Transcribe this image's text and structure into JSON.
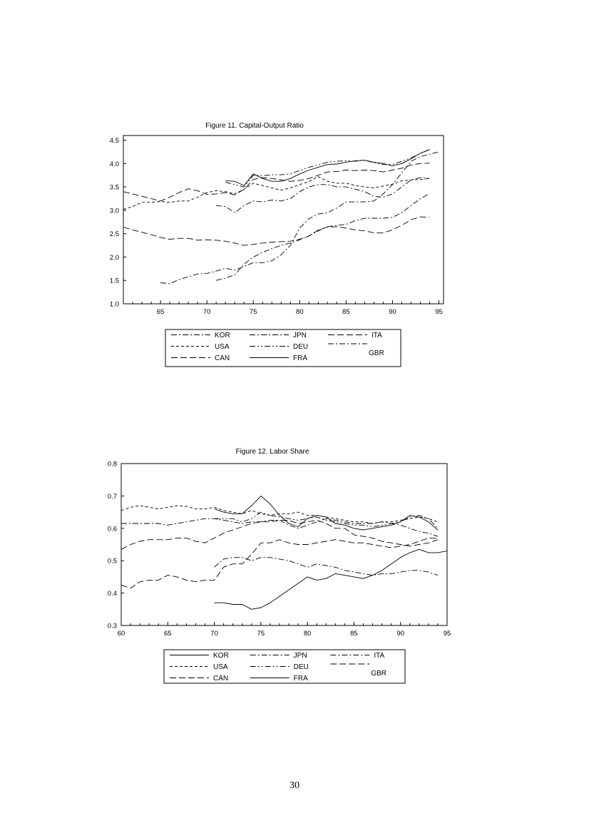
{
  "page_number": "30",
  "chart_data": [
    {
      "type": "line",
      "title": "Figure 11.  Capital-Output Ratio",
      "xlabel": "",
      "ylabel": "",
      "xlim": [
        61,
        95.5
      ],
      "ylim": [
        1.0,
        4.6
      ],
      "x_ticks": [
        "65",
        "70",
        "75",
        "80",
        "85",
        "90",
        "95"
      ],
      "y_ticks": [
        "1.0",
        "1.5",
        "2.0",
        "2.5",
        "3.0",
        "3.5",
        "4.0",
        "4.5"
      ],
      "grid": false,
      "legend_position": "below",
      "legend": [
        "KOR",
        "USA",
        "CAN",
        "JPN",
        "DEU",
        "FRA",
        "ITA",
        "GBR"
      ],
      "series": [
        {
          "name": "KOR",
          "style": "dashdot",
          "x": [
            65,
            66,
            67,
            68,
            69,
            70,
            71,
            72,
            73,
            74,
            75,
            76,
            77,
            78,
            79,
            80,
            81,
            82,
            83,
            84,
            85,
            86,
            87,
            88,
            89,
            90,
            91,
            92,
            93,
            94,
            95
          ],
          "y": [
            1.45,
            1.43,
            1.52,
            1.58,
            1.64,
            1.65,
            1.7,
            1.76,
            1.72,
            1.8,
            1.88,
            1.88,
            1.92,
            2.05,
            2.25,
            2.62,
            2.82,
            2.92,
            2.95,
            3.05,
            3.18,
            3.18,
            3.18,
            3.2,
            3.35,
            3.55,
            3.8,
            4.05,
            4.15,
            4.2,
            4.25
          ]
        },
        {
          "name": "USA",
          "style": "dashed",
          "x": [
            61,
            62,
            63,
            64,
            65,
            66,
            67,
            68,
            69,
            70,
            71,
            72,
            73,
            74,
            75,
            76,
            77,
            78,
            79,
            80,
            81,
            82,
            83,
            84,
            85,
            86,
            87,
            88,
            89,
            90,
            91,
            92,
            93,
            94
          ],
          "y": [
            3.02,
            3.08,
            3.17,
            3.17,
            3.19,
            3.17,
            3.2,
            3.2,
            3.28,
            3.38,
            3.42,
            3.4,
            3.35,
            3.45,
            3.58,
            3.53,
            3.48,
            3.43,
            3.48,
            3.55,
            3.62,
            3.72,
            3.62,
            3.58,
            3.58,
            3.53,
            3.5,
            3.48,
            3.52,
            3.56,
            3.63,
            3.65,
            3.66,
            3.68
          ]
        },
        {
          "name": "CAN",
          "style": "longdash",
          "x": [
            61,
            62,
            63,
            64,
            65,
            66,
            67,
            68,
            69,
            70,
            71,
            72,
            73,
            74,
            75,
            76,
            77,
            78,
            79,
            80,
            81,
            82,
            83,
            84,
            85,
            86,
            87,
            88,
            89,
            90,
            91,
            92,
            93,
            94
          ],
          "y": [
            3.4,
            3.35,
            3.3,
            3.25,
            3.2,
            3.28,
            3.38,
            3.46,
            3.42,
            3.34,
            3.35,
            3.38,
            3.33,
            3.45,
            3.66,
            3.7,
            3.68,
            3.65,
            3.62,
            3.64,
            3.68,
            3.75,
            3.82,
            3.83,
            3.86,
            3.85,
            3.86,
            3.85,
            3.82,
            3.86,
            3.9,
            3.97,
            4.0,
            4.01
          ]
        },
        {
          "name": "JPN",
          "style": "dashdot",
          "x": [
            71,
            72,
            73,
            74,
            75,
            76,
            77,
            78,
            79,
            80,
            81,
            82,
            83,
            84,
            85,
            86,
            87,
            88,
            89,
            90,
            91,
            92,
            93,
            94
          ],
          "y": [
            1.5,
            1.55,
            1.62,
            1.85,
            2.0,
            2.1,
            2.18,
            2.25,
            2.3,
            2.37,
            2.45,
            2.56,
            2.65,
            2.68,
            2.7,
            2.78,
            2.83,
            2.83,
            2.83,
            2.85,
            2.95,
            3.1,
            3.25,
            3.36
          ]
        },
        {
          "name": "DEU",
          "style": "dashdotdot",
          "x": [
            72,
            73,
            74,
            75,
            76,
            77,
            78,
            79,
            80,
            81,
            82,
            83,
            84,
            85,
            86,
            87,
            88,
            89,
            90,
            91,
            92,
            93,
            94
          ],
          "y": [
            3.6,
            3.55,
            3.5,
            3.75,
            3.74,
            3.76,
            3.76,
            3.78,
            3.85,
            3.92,
            3.97,
            4.03,
            4.05,
            4.06,
            4.05,
            4.07,
            4.02,
            3.98,
            3.98,
            4.05,
            4.12,
            4.22,
            4.3
          ]
        },
        {
          "name": "FRA",
          "style": "solid",
          "x": [
            72,
            73,
            74,
            75,
            76,
            77,
            78,
            79,
            80,
            81,
            82,
            83,
            84,
            85,
            86,
            87,
            88,
            89,
            90,
            91,
            92,
            93,
            94
          ],
          "y": [
            3.63,
            3.62,
            3.53,
            3.78,
            3.68,
            3.62,
            3.62,
            3.68,
            3.78,
            3.86,
            3.92,
            3.98,
            3.99,
            4.03,
            4.06,
            4.07,
            4.03,
            4.0,
            3.95,
            4.0,
            4.1,
            4.22,
            4.3
          ]
        },
        {
          "name": "ITA",
          "style": "longdash",
          "x": [
            61,
            62,
            63,
            64,
            65,
            66,
            67,
            68,
            69,
            70,
            71,
            72,
            73,
            74,
            75,
            76,
            77,
            78,
            79,
            80,
            81,
            82,
            83,
            84,
            85,
            86,
            87,
            88,
            89,
            90,
            91,
            92,
            93,
            94
          ],
          "y": [
            2.64,
            2.58,
            2.53,
            2.48,
            2.42,
            2.38,
            2.4,
            2.4,
            2.36,
            2.37,
            2.36,
            2.34,
            2.3,
            2.25,
            2.27,
            2.3,
            2.32,
            2.33,
            2.34,
            2.38,
            2.45,
            2.58,
            2.64,
            2.65,
            2.62,
            2.58,
            2.56,
            2.52,
            2.52,
            2.58,
            2.68,
            2.8,
            2.86,
            2.85
          ]
        },
        {
          "name": "GBR",
          "style": "dashdot",
          "x": [
            71,
            72,
            73,
            74,
            75,
            76,
            77,
            78,
            79,
            80,
            81,
            82,
            83,
            84,
            85,
            86,
            87,
            88,
            89,
            90,
            91,
            92,
            93,
            94
          ],
          "y": [
            3.1,
            3.08,
            2.95,
            3.1,
            3.2,
            3.18,
            3.22,
            3.2,
            3.25,
            3.4,
            3.5,
            3.55,
            3.55,
            3.5,
            3.5,
            3.45,
            3.4,
            3.3,
            3.28,
            3.35,
            3.5,
            3.65,
            3.7,
            3.68
          ]
        }
      ]
    },
    {
      "type": "line",
      "title": "Figure 12.  Labor Share",
      "xlabel": "",
      "ylabel": "",
      "xlim": [
        60,
        95
      ],
      "ylim": [
        0.3,
        0.8
      ],
      "x_ticks": [
        "60",
        "65",
        "70",
        "75",
        "80",
        "85",
        "90",
        "95"
      ],
      "y_ticks": [
        "0.3",
        "0.4",
        "0.5",
        "0.6",
        "0.7",
        "0.8"
      ],
      "grid": false,
      "legend_position": "below",
      "legend": [
        "KOR",
        "USA",
        "CAN",
        "JPN",
        "DEU",
        "FRA",
        "ITA",
        "GBR"
      ],
      "series": [
        {
          "name": "KOR",
          "style": "solid",
          "x": [
            70,
            71,
            72,
            73,
            74,
            75,
            76,
            77,
            78,
            79,
            80,
            81,
            82,
            83,
            84,
            85,
            86,
            87,
            88,
            89,
            90,
            91,
            92,
            93,
            94,
            95
          ],
          "y": [
            0.37,
            0.37,
            0.365,
            0.365,
            0.35,
            0.355,
            0.37,
            0.39,
            0.41,
            0.43,
            0.45,
            0.44,
            0.445,
            0.46,
            0.455,
            0.45,
            0.445,
            0.455,
            0.47,
            0.49,
            0.51,
            0.525,
            0.535,
            0.525,
            0.525,
            0.53
          ]
        },
        {
          "name": "USA",
          "style": "dashed",
          "x": [
            60,
            61,
            62,
            63,
            64,
            65,
            66,
            67,
            68,
            69,
            70,
            71,
            72,
            73,
            74,
            75,
            76,
            77,
            78,
            79,
            80,
            81,
            82,
            83,
            84,
            85,
            86,
            87,
            88,
            89,
            90,
            91,
            92,
            93,
            94
          ],
          "y": [
            0.655,
            0.665,
            0.67,
            0.665,
            0.66,
            0.665,
            0.67,
            0.668,
            0.66,
            0.66,
            0.665,
            0.655,
            0.65,
            0.645,
            0.655,
            0.645,
            0.64,
            0.645,
            0.645,
            0.65,
            0.64,
            0.64,
            0.635,
            0.63,
            0.625,
            0.62,
            0.62,
            0.615,
            0.62,
            0.62,
            0.625,
            0.63,
            0.635,
            0.63,
            0.62
          ]
        },
        {
          "name": "CAN",
          "style": "longdash",
          "x": [
            60,
            61,
            62,
            63,
            64,
            65,
            66,
            67,
            68,
            69,
            70,
            71,
            72,
            73,
            74,
            75,
            76,
            77,
            78,
            79,
            80,
            81,
            82,
            83,
            84,
            85,
            86,
            87,
            88,
            89,
            90,
            91,
            92,
            93,
            94
          ],
          "y": [
            0.535,
            0.55,
            0.56,
            0.565,
            0.565,
            0.565,
            0.57,
            0.57,
            0.56,
            0.555,
            0.57,
            0.585,
            0.595,
            0.605,
            0.615,
            0.62,
            0.62,
            0.625,
            0.625,
            0.615,
            0.62,
            0.625,
            0.615,
            0.6,
            0.6,
            0.58,
            0.575,
            0.57,
            0.56,
            0.555,
            0.55,
            0.545,
            0.55,
            0.555,
            0.565
          ]
        },
        {
          "name": "JPN",
          "style": "dashdot",
          "x": [
            70,
            71,
            72,
            73,
            74,
            75,
            76,
            77,
            78,
            79,
            80,
            81,
            82,
            83,
            84,
            85,
            86,
            87,
            88,
            89,
            90,
            91,
            92,
            93,
            94
          ],
          "y": [
            0.48,
            0.505,
            0.51,
            0.51,
            0.5,
            0.51,
            0.51,
            0.505,
            0.5,
            0.49,
            0.48,
            0.49,
            0.485,
            0.48,
            0.47,
            0.465,
            0.46,
            0.455,
            0.46,
            0.46,
            0.465,
            0.47,
            0.47,
            0.465,
            0.455
          ]
        },
        {
          "name": "DEU",
          "style": "dashdotdot",
          "x": [
            70,
            71,
            72,
            73,
            74,
            75,
            76,
            77,
            78,
            79,
            80,
            81,
            82,
            83,
            84,
            85,
            86,
            87,
            88,
            89,
            90,
            91,
            92,
            93,
            94
          ],
          "y": [
            0.63,
            0.63,
            0.63,
            0.62,
            0.63,
            0.65,
            0.64,
            0.635,
            0.63,
            0.625,
            0.63,
            0.635,
            0.625,
            0.62,
            0.615,
            0.61,
            0.61,
            0.605,
            0.61,
            0.615,
            0.62,
            0.635,
            0.64,
            0.63,
            0.6
          ]
        },
        {
          "name": "FRA",
          "style": "solid",
          "x": [
            70,
            71,
            72,
            73,
            74,
            75,
            76,
            77,
            78,
            79,
            80,
            81,
            82,
            83,
            84,
            85,
            86,
            87,
            88,
            89,
            90,
            91,
            92,
            93,
            94
          ],
          "y": [
            0.66,
            0.65,
            0.645,
            0.645,
            0.67,
            0.7,
            0.675,
            0.64,
            0.615,
            0.605,
            0.63,
            0.64,
            0.635,
            0.615,
            0.61,
            0.6,
            0.595,
            0.6,
            0.605,
            0.61,
            0.62,
            0.64,
            0.635,
            0.62,
            0.595
          ]
        },
        {
          "name": "ITA",
          "style": "dashdot",
          "x": [
            60,
            61,
            62,
            63,
            64,
            65,
            66,
            67,
            68,
            69,
            70,
            71,
            72,
            73,
            74,
            75,
            76,
            77,
            78,
            79,
            80,
            81,
            82,
            83,
            84,
            85,
            86,
            87,
            88,
            89,
            90,
            91,
            92,
            93,
            94
          ],
          "y": [
            0.615,
            0.615,
            0.615,
            0.615,
            0.615,
            0.61,
            0.615,
            0.62,
            0.625,
            0.63,
            0.63,
            0.625,
            0.62,
            0.615,
            0.62,
            0.62,
            0.625,
            0.625,
            0.61,
            0.6,
            0.61,
            0.62,
            0.63,
            0.625,
            0.62,
            0.615,
            0.615,
            0.615,
            0.62,
            0.615,
            0.61,
            0.6,
            0.59,
            0.585,
            0.575
          ]
        },
        {
          "name": "GBR",
          "style": "longdash",
          "x": [
            60,
            61,
            62,
            63,
            64,
            65,
            66,
            67,
            68,
            69,
            70,
            71,
            72,
            73,
            74,
            75,
            76,
            77,
            78,
            79,
            80,
            81,
            82,
            83,
            84,
            85,
            86,
            87,
            88,
            89,
            90,
            91,
            92,
            93,
            94
          ],
          "y": [
            0.425,
            0.415,
            0.435,
            0.44,
            0.44,
            0.455,
            0.45,
            0.44,
            0.435,
            0.44,
            0.44,
            0.48,
            0.49,
            0.49,
            0.52,
            0.555,
            0.555,
            0.565,
            0.555,
            0.55,
            0.55,
            0.555,
            0.56,
            0.565,
            0.56,
            0.555,
            0.555,
            0.55,
            0.545,
            0.54,
            0.545,
            0.55,
            0.56,
            0.57,
            0.57
          ]
        }
      ]
    }
  ]
}
